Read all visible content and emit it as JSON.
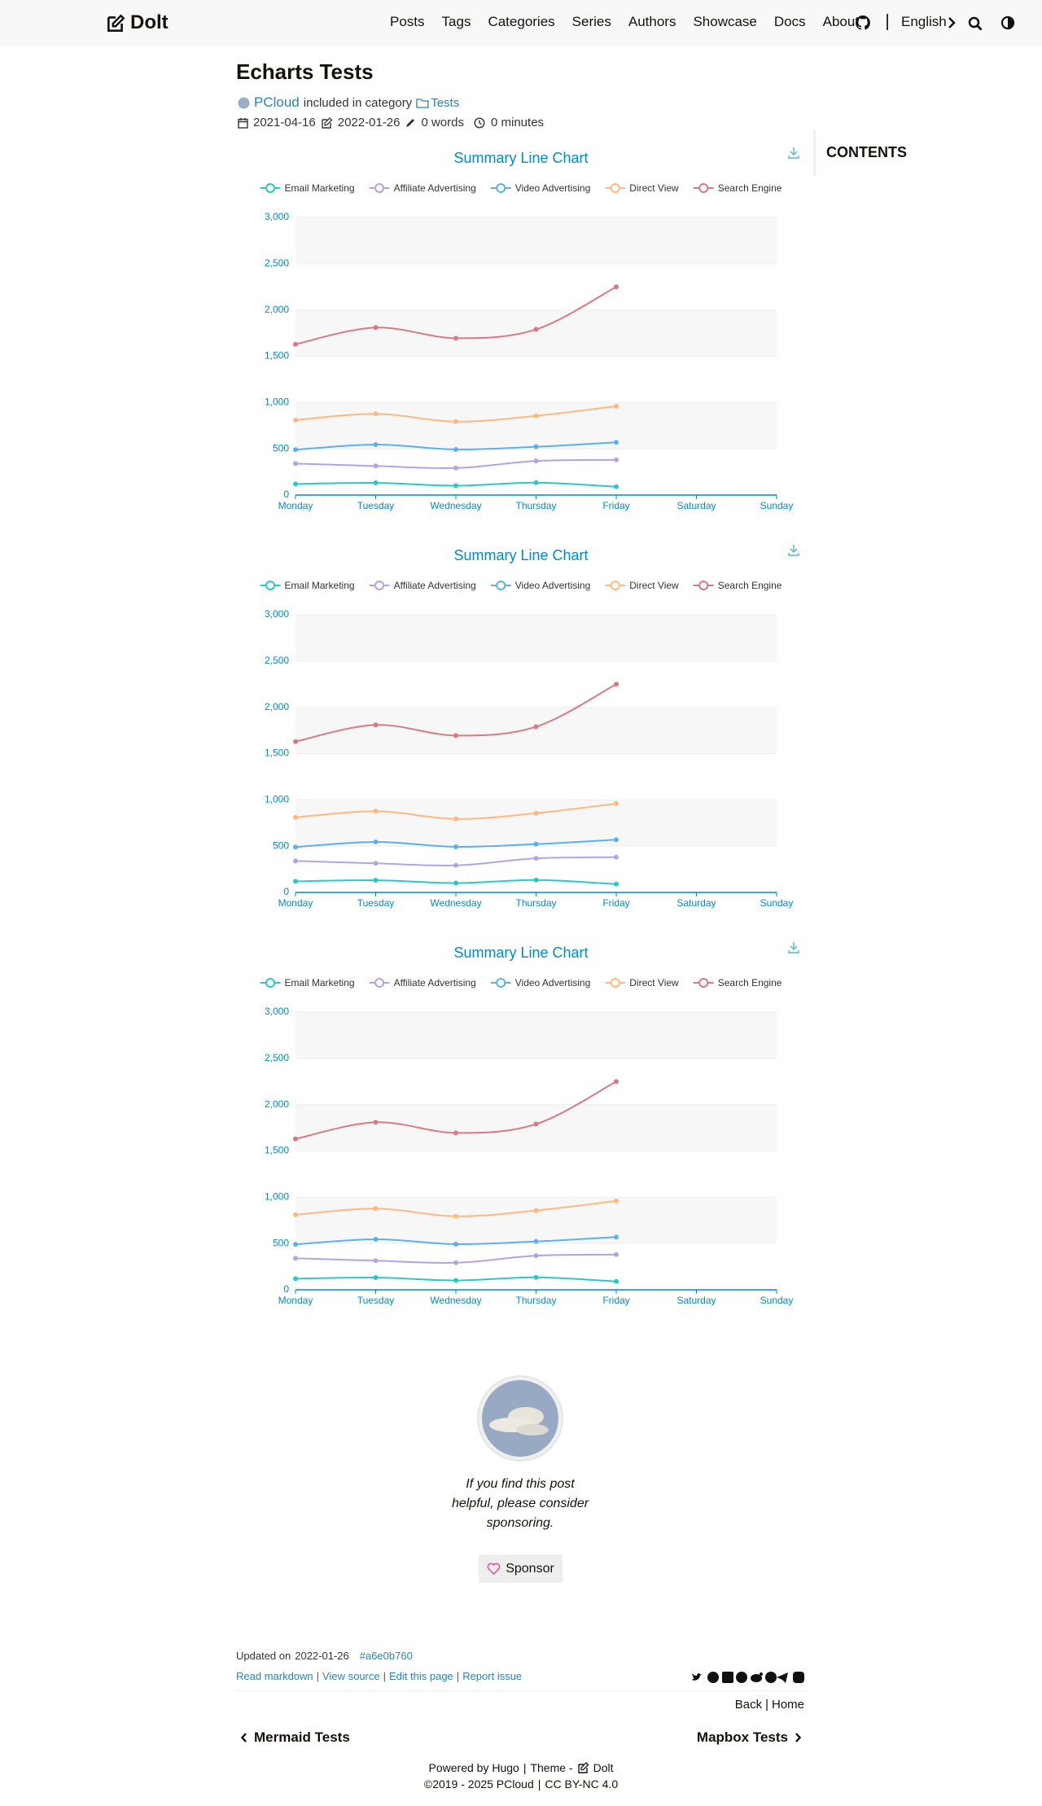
{
  "header": {
    "brand": "Dolt",
    "nav": [
      "Posts",
      "Tags",
      "Categories",
      "Series",
      "Authors",
      "Showcase",
      "Docs",
      "About"
    ],
    "language": "English"
  },
  "post": {
    "title": "Echarts Tests",
    "author": "PCloud",
    "category_prefix": "included in category",
    "category": "Tests",
    "published": "2021-04-16",
    "updated": "2022-01-26",
    "words": "0 words",
    "reading_time": "0 minutes"
  },
  "toc": {
    "title": "CONTENTS"
  },
  "chart_data": [
    {
      "type": "line",
      "title": "Summary Line Chart",
      "stacked": true,
      "smooth": true,
      "grid": true,
      "split_area": true,
      "legend": "top",
      "categories": [
        "Monday",
        "Tuesday",
        "Wednesday",
        "Thursday",
        "Friday",
        "Saturday",
        "Sunday"
      ],
      "series": [
        {
          "name": "Email Marketing",
          "color": "#2ec7c9",
          "values": [
            120,
            132,
            101,
            134,
            90,
            null,
            null
          ]
        },
        {
          "name": "Affiliate Advertising",
          "color": "#b6a2de",
          "values": [
            220,
            182,
            191,
            234,
            290,
            null,
            null
          ]
        },
        {
          "name": "Video Advertising",
          "color": "#5ab1ef",
          "values": [
            150,
            232,
            201,
            154,
            190,
            null,
            null
          ]
        },
        {
          "name": "Direct View",
          "color": "#ffb980",
          "values": [
            320,
            332,
            301,
            334,
            390,
            null,
            null
          ]
        },
        {
          "name": "Search Engine",
          "color": "#d87a80",
          "values": [
            820,
            932,
            901,
            934,
            1290,
            null,
            null
          ]
        }
      ],
      "ylim": [
        0,
        3000
      ],
      "yticks": [
        0,
        500,
        {
          "value": 1000,
          "label": "1,000"
        },
        {
          "value": 1500,
          "label": "1,500"
        },
        {
          "value": 2000,
          "label": "2,000"
        },
        {
          "value": 2500,
          "label": "2,500"
        },
        {
          "value": 3000,
          "label": "3,000"
        }
      ]
    },
    {
      "type": "line",
      "title": "Summary Line Chart",
      "stacked": true,
      "smooth": true,
      "grid": true,
      "split_area": true,
      "legend": "top",
      "categories": [
        "Monday",
        "Tuesday",
        "Wednesday",
        "Thursday",
        "Friday",
        "Saturday",
        "Sunday"
      ],
      "series": [
        {
          "name": "Email Marketing",
          "color": "#2ec7c9",
          "values": [
            120,
            132,
            101,
            134,
            90,
            null,
            null
          ]
        },
        {
          "name": "Affiliate Advertising",
          "color": "#b6a2de",
          "values": [
            220,
            182,
            191,
            234,
            290,
            null,
            null
          ]
        },
        {
          "name": "Video Advertising",
          "color": "#5ab1ef",
          "values": [
            150,
            232,
            201,
            154,
            190,
            null,
            null
          ]
        },
        {
          "name": "Direct View",
          "color": "#ffb980",
          "values": [
            320,
            332,
            301,
            334,
            390,
            null,
            null
          ]
        },
        {
          "name": "Search Engine",
          "color": "#d87a80",
          "values": [
            820,
            932,
            901,
            934,
            1290,
            null,
            null
          ]
        }
      ],
      "ylim": [
        0,
        3000
      ],
      "yticks": [
        0,
        500,
        {
          "value": 1000,
          "label": "1,000"
        },
        {
          "value": 1500,
          "label": "1,500"
        },
        {
          "value": 2000,
          "label": "2,000"
        },
        {
          "value": 2500,
          "label": "2,500"
        },
        {
          "value": 3000,
          "label": "3,000"
        }
      ]
    },
    {
      "type": "line",
      "title": "Summary Line Chart",
      "stacked": true,
      "smooth": true,
      "grid": true,
      "split_area": true,
      "legend": "top",
      "categories": [
        "Monday",
        "Tuesday",
        "Wednesday",
        "Thursday",
        "Friday",
        "Saturday",
        "Sunday"
      ],
      "series": [
        {
          "name": "Email Marketing",
          "color": "#2ec7c9",
          "values": [
            120,
            132,
            101,
            134,
            90,
            null,
            null
          ]
        },
        {
          "name": "Affiliate Advertising",
          "color": "#b6a2de",
          "values": [
            220,
            182,
            191,
            234,
            290,
            null,
            null
          ]
        },
        {
          "name": "Video Advertising",
          "color": "#5ab1ef",
          "values": [
            150,
            232,
            201,
            154,
            190,
            null,
            null
          ]
        },
        {
          "name": "Direct View",
          "color": "#ffb980",
          "values": [
            320,
            332,
            301,
            334,
            390,
            null,
            null
          ]
        },
        {
          "name": "Search Engine",
          "color": "#d87a80",
          "values": [
            820,
            932,
            901,
            934,
            1290,
            null,
            null
          ]
        }
      ],
      "ylim": [
        0,
        3000
      ],
      "yticks": [
        0,
        500,
        {
          "value": 1000,
          "label": "1,000"
        },
        {
          "value": 1500,
          "label": "1,500"
        },
        {
          "value": 2000,
          "label": "2,000"
        },
        {
          "value": 2500,
          "label": "2,500"
        },
        {
          "value": 3000,
          "label": "3,000"
        }
      ]
    }
  ],
  "sponsor": {
    "message": "If you find this post helpful, please consider sponsoring.",
    "button": "Sponsor"
  },
  "footer": {
    "updated_label": "Updated on",
    "updated": "2022-01-26",
    "commit": "#a6e0b760",
    "separator": "|",
    "links": [
      "Read markdown",
      "View source",
      "Edit this page",
      "Report issue"
    ],
    "back": "Back",
    "home": "Home",
    "prev": "Mermaid Tests",
    "next": "Mapbox Tests",
    "powered": "Powered by Hugo",
    "theme": "Theme -",
    "theme_name": "Dolt",
    "copyright": "©2019 - 2025 PCloud",
    "license": "CC BY-NC 4.0"
  }
}
